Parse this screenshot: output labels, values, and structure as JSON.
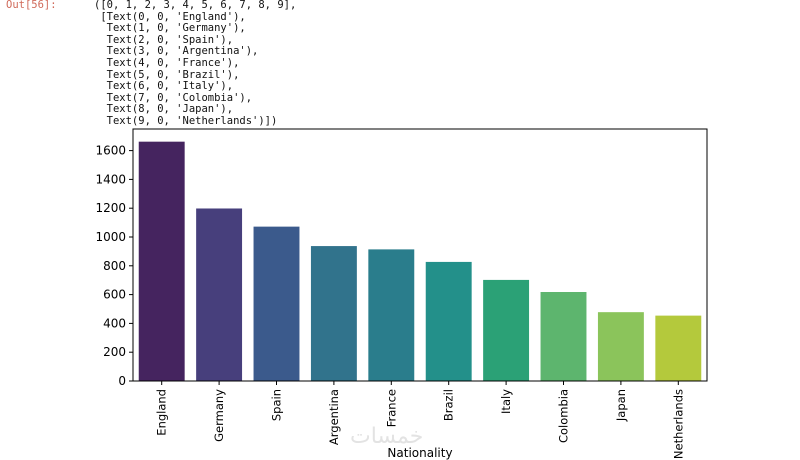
{
  "notebook": {
    "out_prompt": "Out[56]:",
    "out_lines": [
      "([0, 1, 2, 3, 4, 5, 6, 7, 8, 9],",
      " [Text(0, 0, 'England'),",
      "  Text(1, 0, 'Germany'),",
      "  Text(2, 0, 'Spain'),",
      "  Text(3, 0, 'Argentina'),",
      "  Text(4, 0, 'France'),",
      "  Text(5, 0, 'Brazil'),",
      "  Text(6, 0, 'Italy'),",
      "  Text(7, 0, 'Colombia'),",
      "  Text(8, 0, 'Japan'),",
      "  Text(9, 0, 'Netherlands')])"
    ]
  },
  "watermark": "خمسات",
  "chart_data": {
    "type": "bar",
    "title": "",
    "xlabel": "Nationality",
    "ylabel": "",
    "categories": [
      "England",
      "Germany",
      "Spain",
      "Argentina",
      "France",
      "Brazil",
      "Italy",
      "Colombia",
      "Japan",
      "Netherlands"
    ],
    "values": [
      1662,
      1198,
      1072,
      937,
      914,
      827,
      702,
      618,
      478,
      454
    ],
    "colors": [
      "#45245f",
      "#473f7c",
      "#3b5a8c",
      "#31738c",
      "#2a7d8c",
      "#23908a",
      "#2ba176",
      "#5db56e",
      "#8bc45b",
      "#b4c93c"
    ],
    "ylim": [
      0,
      1750
    ],
    "yticks": [
      0,
      200,
      400,
      600,
      800,
      1000,
      1200,
      1400,
      1600
    ],
    "grid": false,
    "xtick_rotation": 90
  }
}
